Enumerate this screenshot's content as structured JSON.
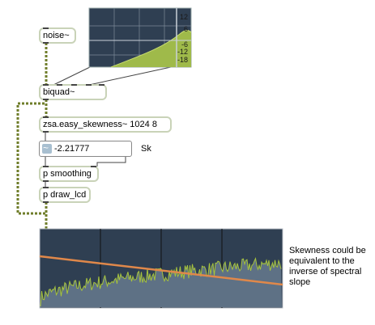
{
  "objects": {
    "noise": "noise~",
    "biquad": "biquad~",
    "zsa": "zsa.easy_skewness~ 1024 8",
    "smoothing": "p smoothing",
    "draw_lcd": "p draw_lcd"
  },
  "number_box": {
    "value": "-2.21777"
  },
  "sk_label": "Sk",
  "filter_graph": {
    "db_labels": [
      "12",
      "6",
      "-6",
      "-12",
      "-18"
    ]
  },
  "comment": "Skewness could be equivalent to the inverse of spectral slope",
  "colors": {
    "object_border": "#c9d3b8",
    "signal_cord": "#6f7d2a",
    "graph_bg": "#2f3f52",
    "filter_fill": "#9fba4a",
    "spectrum_fill": "#5e7185",
    "spectrum_line": "#a7c43c",
    "slope_line": "#e0884a"
  }
}
